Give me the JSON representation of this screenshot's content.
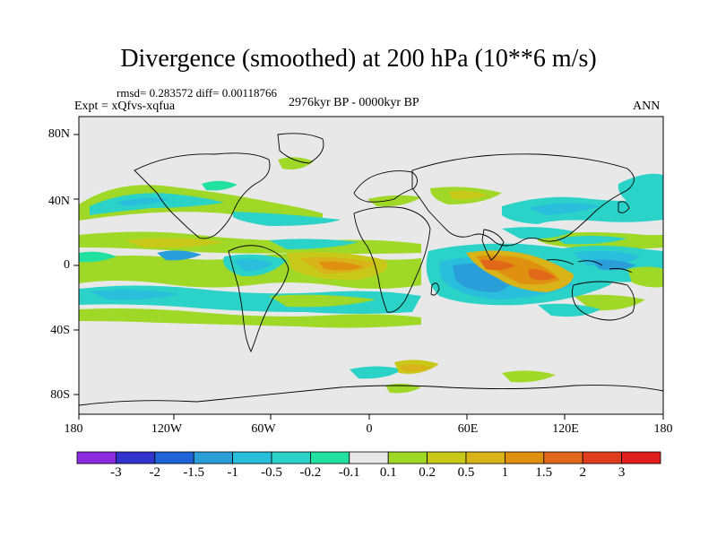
{
  "title": "Divergence (smoothed) at 200 hPa (10**6 m/s)",
  "stats": "rmsd= 0.283572 diff= 0.00118766",
  "experiment": "Expt = xQfvs-xqfua",
  "period": "2976kyr BP - 0000kyr BP",
  "season": "ANN",
  "lat_labels": [
    "80N",
    "40N",
    "0",
    "40S",
    "80S"
  ],
  "lon_labels": [
    "180",
    "120W",
    "60W",
    "0",
    "60E",
    "120E",
    "180"
  ],
  "colorbar": {
    "colors": [
      "#8a2be2",
      "#3232cd",
      "#1e64d8",
      "#2a9ed8",
      "#28bedc",
      "#2ad2c8",
      "#22e0a0",
      "#e8e8e8",
      "#a0d828",
      "#c8c818",
      "#d8b418",
      "#e09010",
      "#e06818",
      "#e03c1e",
      "#e01e1e"
    ],
    "labels": [
      "-3",
      "-2",
      "-1.5",
      "-1",
      "-0.5",
      "-0.2",
      "-0.1",
      "0.1",
      "0.2",
      "0.5",
      "1",
      "1.5",
      "2",
      "3"
    ]
  }
}
